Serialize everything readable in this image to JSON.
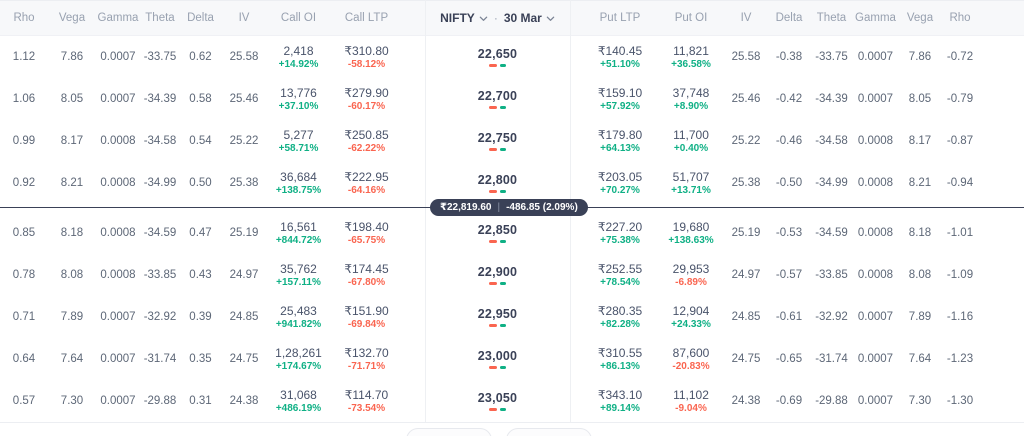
{
  "columns": {
    "call": [
      "Rho",
      "Vega",
      "Gamma",
      "Theta",
      "Delta",
      "IV",
      "Call OI",
      "Call LTP"
    ],
    "put": [
      "Put LTP",
      "Put OI",
      "IV",
      "Delta",
      "Theta",
      "Gamma",
      "Vega",
      "Rho"
    ]
  },
  "selectors": {
    "symbol": "NIFTY",
    "separator": "·",
    "expiry": "30 Mar"
  },
  "spot": {
    "price": "₹22,819.60",
    "divider": "|",
    "change": "-486.85 (2.09%)"
  },
  "colors": {
    "green": "#0fb085",
    "red": "#fa6550",
    "pill_bg": "#3a4157"
  },
  "rows": [
    {
      "call": {
        "rho": "1.12",
        "vega": "7.86",
        "gamma": "0.0007",
        "theta": "-33.75",
        "delta": "0.62",
        "iv": "25.58",
        "oi": "2,418",
        "oiChg": "+14.92%",
        "ltp": "₹310.80",
        "ltpChg": "-58.12%"
      },
      "strike": "22,650",
      "put": {
        "ltp": "₹140.45",
        "ltpChg": "+51.10%",
        "oi": "11,821",
        "oiChg": "+36.58%",
        "iv": "25.58",
        "delta": "-0.38",
        "theta": "-33.75",
        "gamma": "0.0007",
        "vega": "7.86",
        "rho": "-0.72"
      }
    },
    {
      "call": {
        "rho": "1.06",
        "vega": "8.05",
        "gamma": "0.0007",
        "theta": "-34.39",
        "delta": "0.58",
        "iv": "25.46",
        "oi": "13,776",
        "oiChg": "+37.10%",
        "ltp": "₹279.90",
        "ltpChg": "-60.17%"
      },
      "strike": "22,700",
      "put": {
        "ltp": "₹159.10",
        "ltpChg": "+57.92%",
        "oi": "37,748",
        "oiChg": "+8.90%",
        "iv": "25.46",
        "delta": "-0.42",
        "theta": "-34.39",
        "gamma": "0.0007",
        "vega": "8.05",
        "rho": "-0.79"
      }
    },
    {
      "call": {
        "rho": "0.99",
        "vega": "8.17",
        "gamma": "0.0008",
        "theta": "-34.58",
        "delta": "0.54",
        "iv": "25.22",
        "oi": "5,277",
        "oiChg": "+58.71%",
        "ltp": "₹250.85",
        "ltpChg": "-62.22%"
      },
      "strike": "22,750",
      "put": {
        "ltp": "₹179.80",
        "ltpChg": "+64.13%",
        "oi": "11,700",
        "oiChg": "+0.40%",
        "iv": "25.22",
        "delta": "-0.46",
        "theta": "-34.58",
        "gamma": "0.0008",
        "vega": "8.17",
        "rho": "-0.87"
      }
    },
    {
      "call": {
        "rho": "0.92",
        "vega": "8.21",
        "gamma": "0.0008",
        "theta": "-34.99",
        "delta": "0.50",
        "iv": "25.38",
        "oi": "36,684",
        "oiChg": "+138.75%",
        "ltp": "₹222.95",
        "ltpChg": "-64.16%"
      },
      "strike": "22,800",
      "put": {
        "ltp": "₹203.05",
        "ltpChg": "+70.27%",
        "oi": "51,707",
        "oiChg": "+13.71%",
        "iv": "25.38",
        "delta": "-0.50",
        "theta": "-34.99",
        "gamma": "0.0008",
        "vega": "8.21",
        "rho": "-0.94"
      }
    },
    {
      "call": {
        "rho": "0.85",
        "vega": "8.18",
        "gamma": "0.0008",
        "theta": "-34.59",
        "delta": "0.47",
        "iv": "25.19",
        "oi": "16,561",
        "oiChg": "+844.72%",
        "ltp": "₹198.40",
        "ltpChg": "-65.75%"
      },
      "strike": "22,850",
      "put": {
        "ltp": "₹227.20",
        "ltpChg": "+75.38%",
        "oi": "19,680",
        "oiChg": "+138.63%",
        "iv": "25.19",
        "delta": "-0.53",
        "theta": "-34.59",
        "gamma": "0.0008",
        "vega": "8.18",
        "rho": "-1.01"
      }
    },
    {
      "call": {
        "rho": "0.78",
        "vega": "8.08",
        "gamma": "0.0008",
        "theta": "-33.85",
        "delta": "0.43",
        "iv": "24.97",
        "oi": "35,762",
        "oiChg": "+157.11%",
        "ltp": "₹174.45",
        "ltpChg": "-67.80%"
      },
      "strike": "22,900",
      "put": {
        "ltp": "₹252.55",
        "ltpChg": "+78.54%",
        "oi": "29,953",
        "oiChg": "-6.89%",
        "iv": "24.97",
        "delta": "-0.57",
        "theta": "-33.85",
        "gamma": "0.0008",
        "vega": "8.08",
        "rho": "-1.09"
      }
    },
    {
      "call": {
        "rho": "0.71",
        "vega": "7.89",
        "gamma": "0.0007",
        "theta": "-32.92",
        "delta": "0.39",
        "iv": "24.85",
        "oi": "25,483",
        "oiChg": "+941.82%",
        "ltp": "₹151.90",
        "ltpChg": "-69.84%"
      },
      "strike": "22,950",
      "put": {
        "ltp": "₹280.35",
        "ltpChg": "+82.28%",
        "oi": "12,904",
        "oiChg": "+24.33%",
        "iv": "24.85",
        "delta": "-0.61",
        "theta": "-32.92",
        "gamma": "0.0007",
        "vega": "7.89",
        "rho": "-1.16"
      }
    },
    {
      "call": {
        "rho": "0.64",
        "vega": "7.64",
        "gamma": "0.0007",
        "theta": "-31.74",
        "delta": "0.35",
        "iv": "24.75",
        "oi": "1,28,261",
        "oiChg": "+174.67%",
        "ltp": "₹132.70",
        "ltpChg": "-71.71%"
      },
      "strike": "23,000",
      "put": {
        "ltp": "₹310.55",
        "ltpChg": "+86.13%",
        "oi": "87,600",
        "oiChg": "-20.83%",
        "iv": "24.75",
        "delta": "-0.65",
        "theta": "-31.74",
        "gamma": "0.0007",
        "vega": "7.64",
        "rho": "-1.23"
      }
    },
    {
      "call": {
        "rho": "0.57",
        "vega": "7.30",
        "gamma": "0.0007",
        "theta": "-29.88",
        "delta": "0.31",
        "iv": "24.38",
        "oi": "31,068",
        "oiChg": "+486.19%",
        "ltp": "₹114.70",
        "ltpChg": "-73.54%"
      },
      "strike": "23,050",
      "put": {
        "ltp": "₹343.10",
        "ltpChg": "+89.14%",
        "oi": "11,102",
        "oiChg": "-9.04%",
        "iv": "24.38",
        "delta": "-0.69",
        "theta": "-29.88",
        "gamma": "0.0007",
        "vega": "7.30",
        "rho": "-1.30"
      }
    }
  ]
}
